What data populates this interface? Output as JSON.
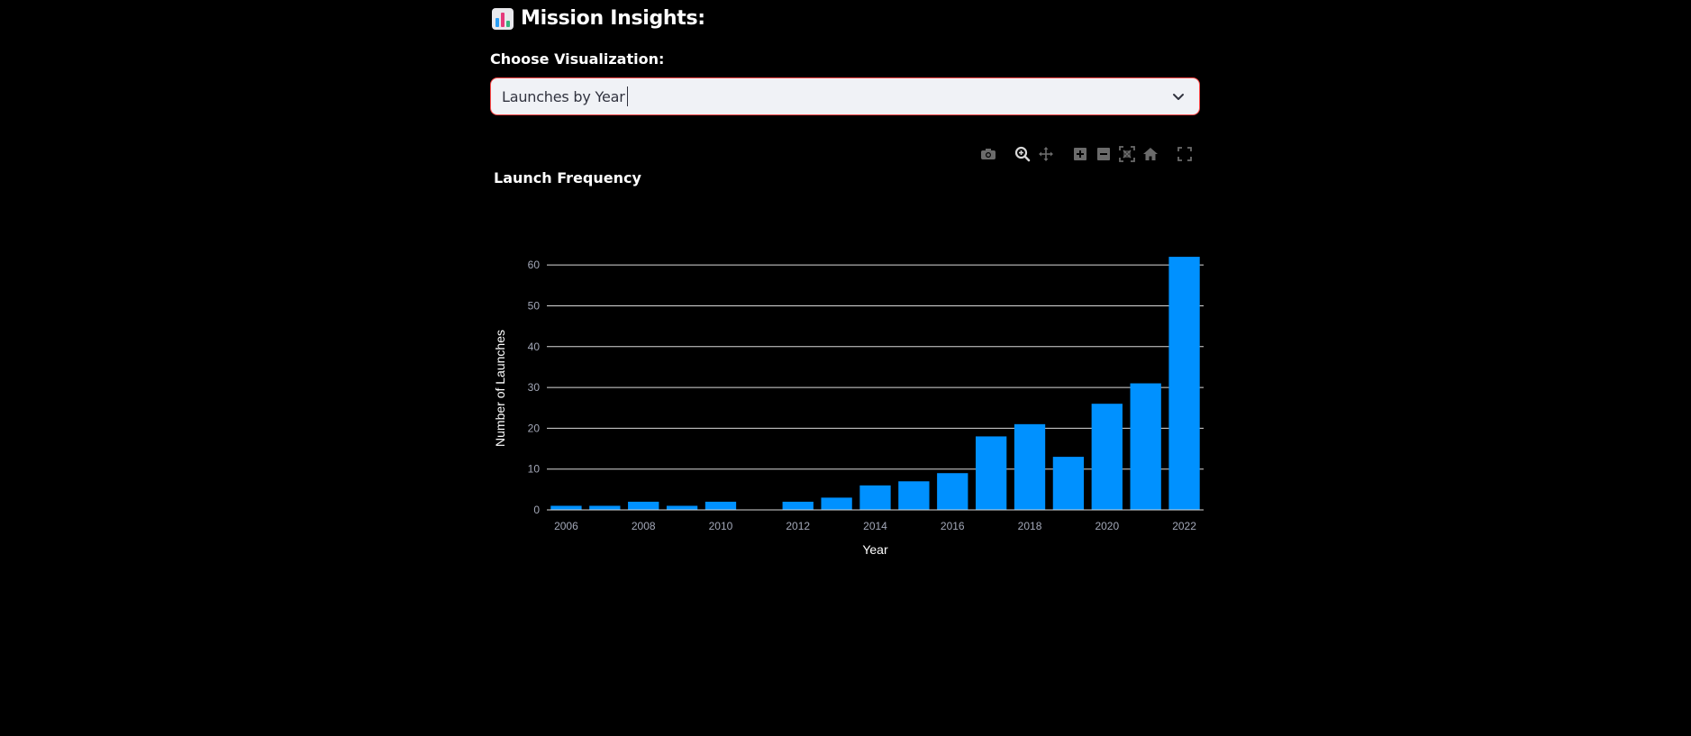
{
  "header": {
    "icon": "bar-chart-icon",
    "title": "Mission Insights:"
  },
  "visualization_select": {
    "label": "Choose Visualization:",
    "value": "Launches by Year",
    "accent_color": "#ff4b4b",
    "icon": "chevron-down-icon"
  },
  "modebar": {
    "buttons": [
      "camera-icon",
      "zoom-icon",
      "pan-icon",
      "zoom-in-icon",
      "zoom-out-icon",
      "autoscale-icon",
      "home-icon",
      "fullscreen-icon"
    ]
  },
  "chart_data": {
    "type": "bar",
    "title": "Launch Frequency",
    "xlabel": "Year",
    "ylabel": "Number of Launches",
    "bar_color": "#0091ff",
    "x": [
      2006,
      2007,
      2008,
      2009,
      2010,
      2011,
      2012,
      2013,
      2014,
      2015,
      2016,
      2017,
      2018,
      2019,
      2020,
      2021,
      2022
    ],
    "values": [
      1,
      1,
      2,
      1,
      2,
      0,
      2,
      3,
      6,
      7,
      9,
      18,
      21,
      13,
      26,
      31,
      62
    ],
    "x_tick_labels": [
      "2006",
      "2008",
      "2010",
      "2012",
      "2014",
      "2016",
      "2018",
      "2020",
      "2022"
    ],
    "y_tick_labels": [
      "0",
      "10",
      "20",
      "30",
      "40",
      "50",
      "60"
    ],
    "ylim": [
      0,
      64
    ],
    "grid": true
  }
}
